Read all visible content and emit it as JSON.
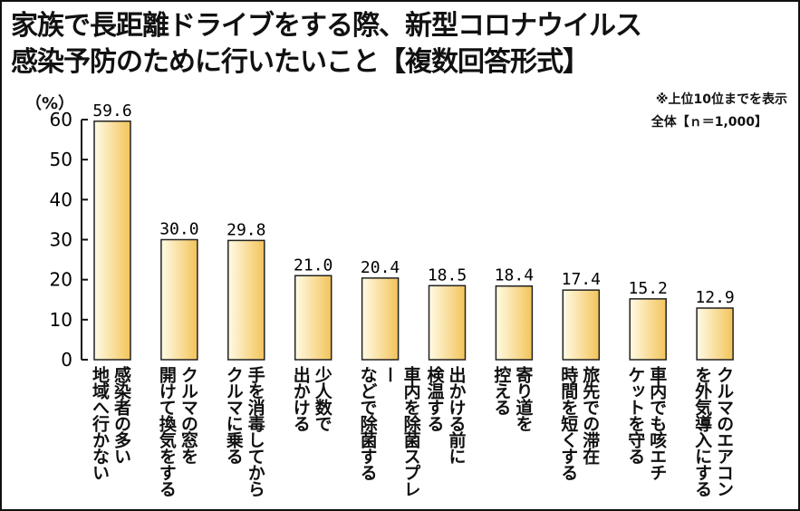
{
  "title": {
    "line1": "家族で長距離ドライブをする際、新型コロナウイルス",
    "line2": "感染予防のために行いたいこと【複数回答形式】"
  },
  "note": "※上位10位までを表示",
  "sample": "全体【ｎ＝1,000】",
  "unit": "（%）",
  "colors": {
    "bar_light": "#fffbe6",
    "bar_dark": "#f3c45a",
    "bar_edge": "#222222"
  },
  "chart_data": {
    "type": "bar",
    "categories": [
      "感染者の多い\n地域へ行かない",
      "クルマの窓を\n開けて換気をする",
      "手を消毒してから\nクルマに乗る",
      "少人数で\n出かける",
      "車内を除菌スプレー\nなどで除菌する",
      "出かける前に\n検温する",
      "寄り道を\n控える",
      "旅先での滞在\n時間を短くする",
      "車内でも咳エチ\nケットを守る",
      "クルマのエアコン\nを外気導入にする"
    ],
    "values": [
      59.6,
      30.0,
      29.8,
      21.0,
      20.4,
      18.5,
      18.4,
      17.4,
      15.2,
      12.9
    ],
    "value_labels": [
      "59.6",
      "30.0",
      "29.8",
      "21.0",
      "20.4",
      "18.5",
      "18.4",
      "17.4",
      "15.2",
      "12.9"
    ],
    "yticks": [
      "0",
      "10",
      "20",
      "30",
      "40",
      "50",
      "60"
    ],
    "ylim": [
      0,
      60
    ],
    "grid": false,
    "legend": "none"
  }
}
